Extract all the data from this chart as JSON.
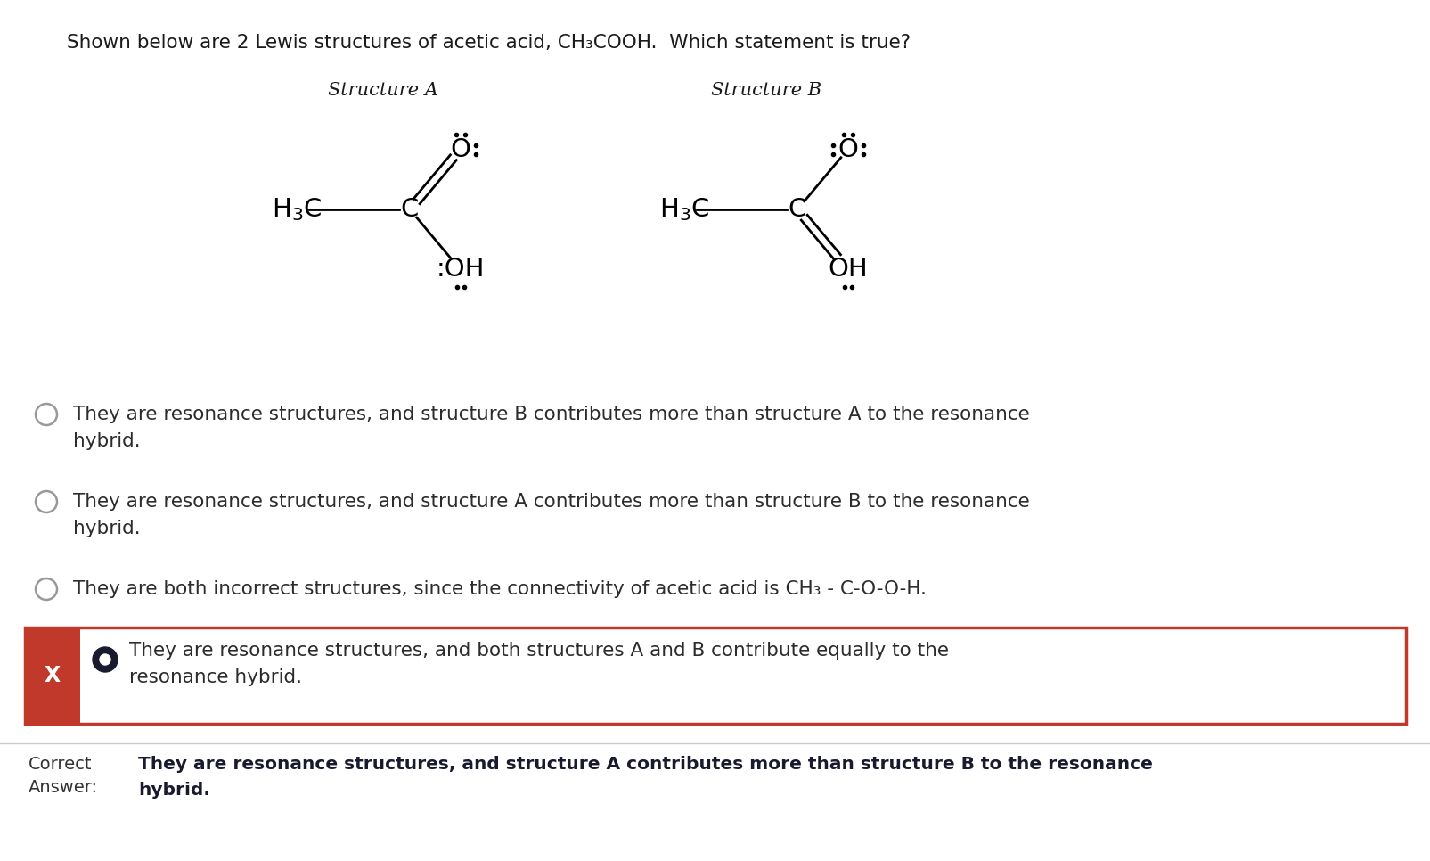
{
  "title": "Shown below are 2 Lewis structures of acetic acid, CH₃COOH.  Which statement is true?",
  "struct_a_title": "Structure A",
  "struct_b_title": "Structure B",
  "bg_color": "#ffffff",
  "text_color": "#1a1a1a",
  "choice1": "They are resonance structures, and structure B contributes more than structure A to the resonance\nhybrid.",
  "choice2": "They are resonance structures, and structure A contributes more than structure B to the resonance\nhybrid.",
  "choice3": "They are both incorrect structures, since the connectivity of acetic acid is CH₃ - C-O-O-H.",
  "choice4": "They are resonance structures, and both structures A and B contribute equally to the\nresonance hybrid.",
  "correct_label1": "Correct",
  "correct_label2": "Answer:",
  "correct_text": "They are resonance structures, and structure A contributes more than structure B to the resonance\nhybrid.",
  "selected_box_color": "#c0392b"
}
